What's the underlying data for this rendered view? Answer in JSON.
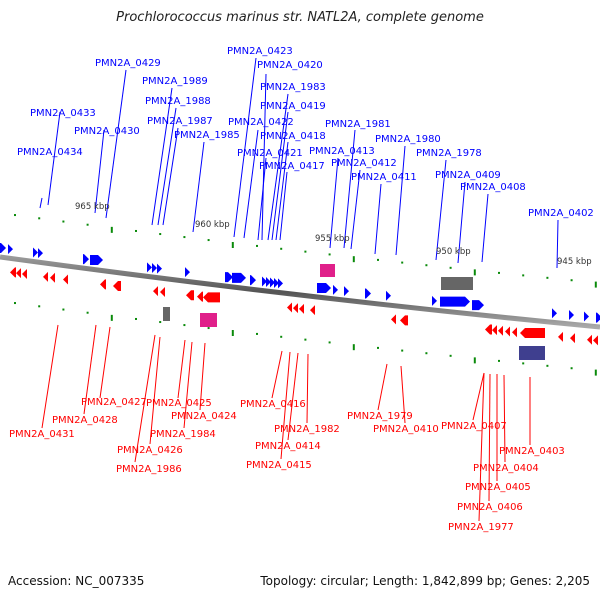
{
  "title": "Prochlorococcus marinus str. NATL2A, complete genome",
  "footer": {
    "accession": "Accession: NC_007335",
    "summary": "Topology: circular; Length: 1,842,899 bp; Genes: 2,205"
  },
  "colors": {
    "forward": "#0000ff",
    "reverse": "#ff0000",
    "backbone": "#777777",
    "tick": "#0a8a0a",
    "rna": "#e0208a",
    "pseudo": "#666666",
    "other": "#3f3f8f"
  },
  "scale_labels": [
    "965 kbp",
    "960 kbp",
    "955 kbp",
    "950 kbp",
    "945 kbp"
  ],
  "forward_labels": [
    {
      "name": "PMN2A_0434"
    },
    {
      "name": "PMN2A_0433"
    },
    {
      "name": "PMN2A_0430"
    },
    {
      "name": "PMN2A_0429"
    },
    {
      "name": "PMN2A_1989"
    },
    {
      "name": "PMN2A_1988"
    },
    {
      "name": "PMN2A_1987"
    },
    {
      "name": "PMN2A_1985"
    },
    {
      "name": "PMN2A_0423"
    },
    {
      "name": "PMN2A_0422"
    },
    {
      "name": "PMN2A_0421"
    },
    {
      "name": "PMN2A_0420"
    },
    {
      "name": "PMN2A_1983"
    },
    {
      "name": "PMN2A_0419"
    },
    {
      "name": "PMN2A_0418"
    },
    {
      "name": "PMN2A_0417"
    },
    {
      "name": "PMN2A_0413"
    },
    {
      "name": "PMN2A_1981"
    },
    {
      "name": "PMN2A_0412"
    },
    {
      "name": "PMN2A_0411"
    },
    {
      "name": "PMN2A_1980"
    },
    {
      "name": "PMN2A_1978"
    },
    {
      "name": "PMN2A_0409"
    },
    {
      "name": "PMN2A_0408"
    },
    {
      "name": "PMN2A_0402"
    }
  ],
  "reverse_labels": [
    {
      "name": "PMN2A_0431"
    },
    {
      "name": "PMN2A_0428"
    },
    {
      "name": "PMN2A_0427"
    },
    {
      "name": "PMN2A_1986"
    },
    {
      "name": "PMN2A_0426"
    },
    {
      "name": "PMN2A_0425"
    },
    {
      "name": "PMN2A_1984"
    },
    {
      "name": "PMN2A_0424"
    },
    {
      "name": "PMN2A_0416"
    },
    {
      "name": "PMN2A_0415"
    },
    {
      "name": "PMN2A_0414"
    },
    {
      "name": "PMN2A_1982"
    },
    {
      "name": "PMN2A_1979"
    },
    {
      "name": "PMN2A_0410"
    },
    {
      "name": "PMN2A_0407"
    },
    {
      "name": "PMN2A_1977"
    },
    {
      "name": "PMN2A_0406"
    },
    {
      "name": "PMN2A_0405"
    },
    {
      "name": "PMN2A_0404"
    },
    {
      "name": "PMN2A_0403"
    }
  ]
}
